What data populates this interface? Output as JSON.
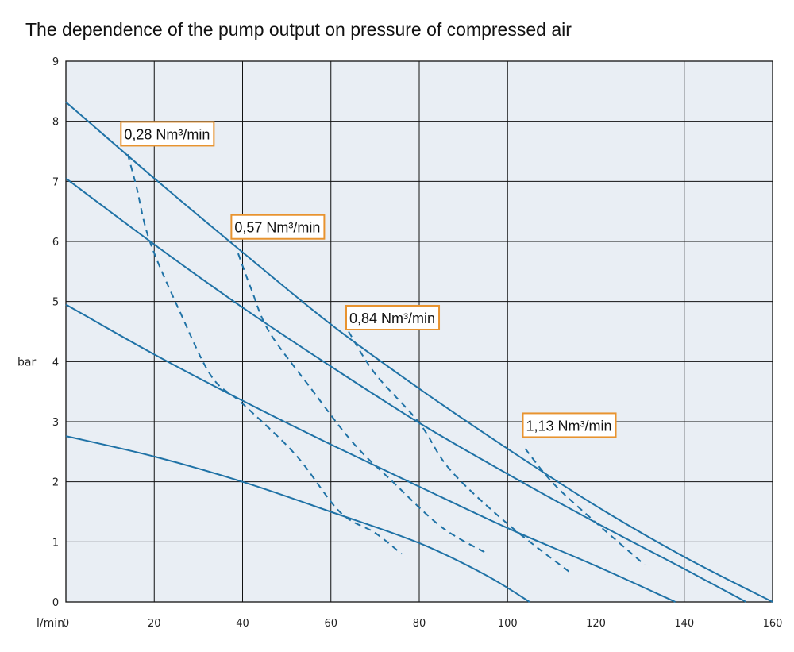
{
  "chart_data": {
    "type": "line",
    "title": "The dependence of the pump output on pressure of compressed air",
    "xlabel": "l/min",
    "ylabel": "bar",
    "xlim": [
      0,
      160
    ],
    "ylim": [
      0,
      9
    ],
    "x_ticks": [
      "0",
      "20",
      "40",
      "60",
      "80",
      "100",
      "120",
      "140",
      "160"
    ],
    "y_ticks": [
      "0",
      "1",
      "2",
      "3",
      "4",
      "5",
      "6",
      "7",
      "8",
      "9"
    ],
    "grid": true,
    "colors": {
      "plot_bg": "#e9eef4",
      "line": "#1f72a6",
      "grid": "#111111",
      "annotation_border": "#e8932f"
    },
    "series": [
      {
        "style": "solid",
        "points": [
          [
            0,
            2.76
          ],
          [
            20,
            2.42
          ],
          [
            40,
            2.0
          ],
          [
            60,
            1.5
          ],
          [
            80,
            0.98
          ],
          [
            95,
            0.45
          ],
          [
            105,
            0.0
          ]
        ]
      },
      {
        "style": "solid",
        "points": [
          [
            0,
            4.95
          ],
          [
            20,
            4.12
          ],
          [
            40,
            3.35
          ],
          [
            60,
            2.62
          ],
          [
            80,
            1.92
          ],
          [
            100,
            1.23
          ],
          [
            120,
            0.6
          ],
          [
            138,
            0.0
          ]
        ]
      },
      {
        "style": "solid",
        "points": [
          [
            0,
            7.05
          ],
          [
            20,
            5.95
          ],
          [
            40,
            4.9
          ],
          [
            60,
            3.92
          ],
          [
            80,
            2.98
          ],
          [
            100,
            2.13
          ],
          [
            120,
            1.32
          ],
          [
            140,
            0.55
          ],
          [
            154,
            0.0
          ]
        ]
      },
      {
        "style": "solid",
        "points": [
          [
            0,
            8.32
          ],
          [
            20,
            7.05
          ],
          [
            40,
            5.82
          ],
          [
            60,
            4.62
          ],
          [
            80,
            3.55
          ],
          [
            100,
            2.55
          ],
          [
            120,
            1.6
          ],
          [
            140,
            0.75
          ],
          [
            160,
            0.0
          ]
        ]
      },
      {
        "style": "dashed",
        "name": "0,28 Nm³/min",
        "points": [
          [
            14,
            7.45
          ],
          [
            16,
            6.9
          ],
          [
            19,
            6.0
          ],
          [
            26,
            4.8
          ],
          [
            33,
            3.75
          ],
          [
            40,
            3.3
          ],
          [
            52,
            2.45
          ],
          [
            62,
            1.5
          ],
          [
            70,
            1.15
          ],
          [
            76,
            0.8
          ]
        ]
      },
      {
        "style": "dashed",
        "name": "0,57 Nm³/min",
        "points": [
          [
            39,
            5.8
          ],
          [
            42,
            5.2
          ],
          [
            46,
            4.5
          ],
          [
            55,
            3.6
          ],
          [
            65,
            2.65
          ],
          [
            74,
            2.0
          ],
          [
            85,
            1.25
          ],
          [
            95,
            0.82
          ]
        ]
      },
      {
        "style": "dashed",
        "name": "0,84 Nm³/min",
        "points": [
          [
            64,
            4.5
          ],
          [
            70,
            3.8
          ],
          [
            80,
            2.98
          ],
          [
            87,
            2.2
          ],
          [
            100,
            1.3
          ],
          [
            114,
            0.5
          ]
        ]
      },
      {
        "style": "dashed",
        "name": "1,13 Nm³/min",
        "points": [
          [
            104,
            2.55
          ],
          [
            110,
            2.0
          ],
          [
            118,
            1.45
          ],
          [
            131,
            0.62
          ]
        ]
      }
    ],
    "annotations": [
      {
        "label": "0,28 Nm³/min",
        "x": 13,
        "y": 7.58
      },
      {
        "label": "0,57 Nm³/min",
        "x": 38,
        "y": 6.03
      },
      {
        "label": "0,84 Nm³/min",
        "x": 64,
        "y": 4.52
      },
      {
        "label": "1,13 Nm³/min",
        "x": 104,
        "y": 2.73
      }
    ]
  }
}
